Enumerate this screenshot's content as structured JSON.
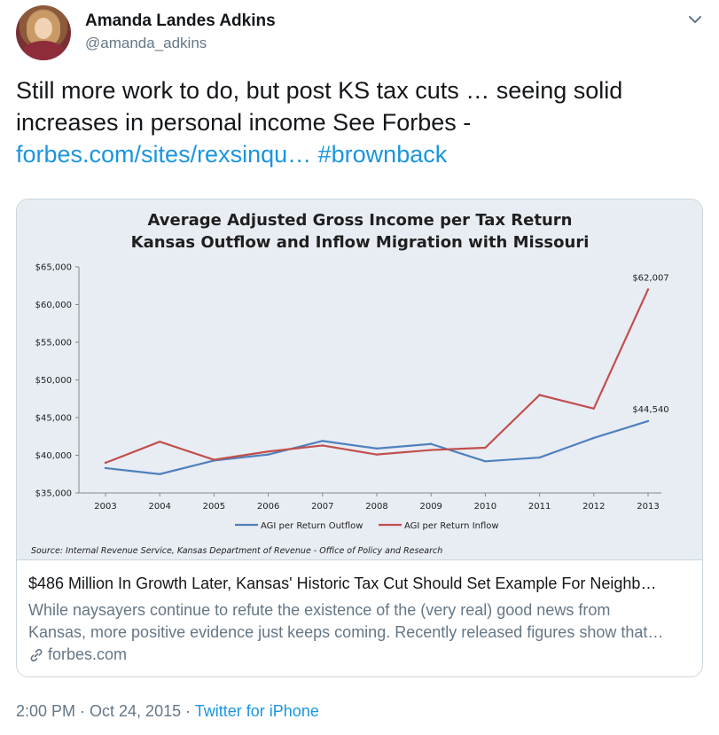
{
  "tweet": {
    "author_name": "Amanda Landes Adkins",
    "author_handle": "@amanda_adkins",
    "text_line1": "Still more work to do, but post KS tax cuts … seeing solid",
    "text_line2": "increases in personal income See Forbes -",
    "link_text": "forbes.com/sites/rexsinqu…",
    "hashtag": "#brownback",
    "timestamp": "2:00 PM · Oct 24, 2015",
    "separator": " · ",
    "source": "Twitter for iPhone"
  },
  "card": {
    "title": "$486 Million In Growth Later, Kansas' Historic Tax Cut Should Set Example For Neighb…",
    "description_line1": "While naysayers continue to refute the existence of the (very real) good news from",
    "description_line2": "Kansas, more positive evidence just keeps coming. Recently released figures show that…",
    "domain": "forbes.com"
  },
  "icons": {
    "menu": "chevron-down-icon",
    "domain": "link-icon",
    "avatar": "profile-photo"
  },
  "colors": {
    "link": "#1b95e0",
    "secondary_text": "#657786",
    "outflow_series": "#4f81bd",
    "inflow_series": "#c0504d"
  },
  "chart_data": {
    "type": "line",
    "title_line1": "Average Adjusted Gross Income per Tax Return",
    "title_line2": "Kansas Outflow and Inflow Migration with Missouri",
    "categories": [
      "2003",
      "2004",
      "2005",
      "2006",
      "2007",
      "2008",
      "2009",
      "2010",
      "2011",
      "2012",
      "2013"
    ],
    "y_ticks": [
      35000,
      40000,
      45000,
      50000,
      55000,
      60000,
      65000
    ],
    "y_tick_labels": [
      "$35,000",
      "$40,000",
      "$45,000",
      "$50,000",
      "$55,000",
      "$60,000",
      "$65,000"
    ],
    "ylim": [
      35000,
      65000
    ],
    "grid": false,
    "legend_position": "bottom",
    "series": [
      {
        "name": "AGI per Return Outflow",
        "color": "#4f81bd",
        "values": [
          38300,
          37500,
          39300,
          40100,
          41900,
          40900,
          41500,
          39200,
          39700,
          42300,
          44540
        ],
        "end_label": "$44,540"
      },
      {
        "name": "AGI per Return Inflow",
        "color": "#c0504d",
        "values": [
          39000,
          41800,
          39400,
          40500,
          41300,
          40100,
          40700,
          41000,
          48000,
          46200,
          62007
        ],
        "end_label": "$62,007"
      }
    ],
    "source": "Source: Internal Revenue Service, Kansas Department of Revenue - Office of Policy and Research"
  }
}
